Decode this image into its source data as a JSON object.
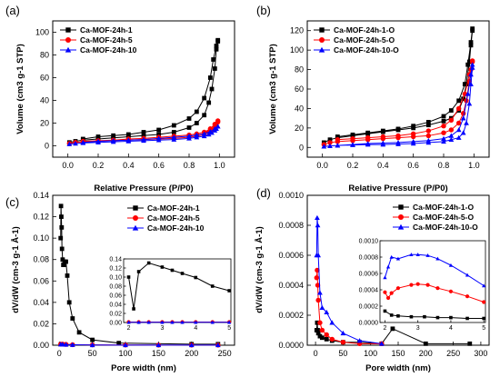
{
  "chart_data": [
    {
      "id": "a",
      "type": "line",
      "panel_label": "(a)",
      "xlabel": "Relative Pressure (P/P0)",
      "ylabel": "Volume (cm3 g-1 STP)",
      "xlim": [
        -0.1,
        1.1
      ],
      "ylim": [
        -10,
        110
      ],
      "xticks": [
        0.0,
        0.2,
        0.4,
        0.6,
        0.8,
        1.0
      ],
      "xtick_labels": [
        "0.0",
        "0.2",
        "0.4",
        "0.6",
        "0.8",
        "1.0"
      ],
      "yticks": [
        0,
        20,
        40,
        60,
        80,
        100
      ],
      "ytick_labels": [
        "0",
        "20",
        "40",
        "60",
        "80",
        "100"
      ],
      "legend_position": "top-left",
      "series": [
        {
          "name": "Ca-MOF-24h-1",
          "color": "#000000",
          "marker": "square",
          "x": [
            0.01,
            0.05,
            0.1,
            0.2,
            0.3,
            0.4,
            0.5,
            0.6,
            0.7,
            0.8,
            0.85,
            0.9,
            0.93,
            0.95,
            0.97,
            0.98,
            0.99,
            0.99,
            0.98,
            0.96,
            0.94,
            0.9,
            0.85,
            0.8,
            0.7,
            0.6,
            0.5,
            0.4,
            0.3,
            0.2,
            0.1
          ],
          "y": [
            3,
            4,
            5,
            6,
            7,
            8,
            9,
            10,
            12,
            16,
            20,
            27,
            38,
            50,
            68,
            85,
            92,
            93,
            88,
            76,
            60,
            42,
            30,
            24,
            18,
            14,
            12,
            10,
            9,
            8,
            6
          ]
        },
        {
          "name": "Ca-MOF-24h-5",
          "color": "#ff0000",
          "marker": "circle",
          "x": [
            0.01,
            0.05,
            0.1,
            0.2,
            0.3,
            0.4,
            0.5,
            0.6,
            0.7,
            0.8,
            0.85,
            0.9,
            0.93,
            0.95,
            0.97,
            0.98,
            0.99,
            0.99,
            0.97,
            0.94,
            0.9,
            0.85,
            0.8,
            0.7,
            0.6,
            0.5,
            0.4,
            0.3,
            0.2,
            0.1
          ],
          "y": [
            2,
            3,
            3.5,
            4,
            4.5,
            5,
            5.5,
            6,
            6.5,
            7.5,
            8.5,
            10,
            12,
            14,
            17,
            19,
            21,
            22,
            19,
            15,
            12,
            10.5,
            9.5,
            8.5,
            7.5,
            6.5,
            6,
            5,
            4.5,
            4
          ]
        },
        {
          "name": "Ca-MOF-24h-10",
          "color": "#0000ff",
          "marker": "triangle",
          "x": [
            0.01,
            0.05,
            0.1,
            0.2,
            0.3,
            0.4,
            0.5,
            0.6,
            0.7,
            0.8,
            0.85,
            0.9,
            0.93,
            0.95,
            0.97,
            0.98,
            0.99,
            0.99,
            0.97,
            0.94,
            0.9,
            0.85,
            0.8,
            0.7,
            0.6,
            0.5,
            0.4,
            0.3,
            0.2,
            0.1
          ],
          "y": [
            1.5,
            2,
            2.5,
            3,
            3.5,
            4,
            4.5,
            5,
            5.5,
            6.5,
            7.5,
            8.5,
            10,
            11.5,
            13.5,
            15,
            17,
            17,
            15,
            12.5,
            10.5,
            9.5,
            8.5,
            7.5,
            6.5,
            5.5,
            5,
            4.5,
            4,
            3
          ]
        }
      ]
    },
    {
      "id": "b",
      "type": "line",
      "panel_label": "(b)",
      "xlabel": "Relative Pressure (P/P0)",
      "ylabel": "Volume (cm3 g-1 STP)",
      "xlim": [
        -0.1,
        1.1
      ],
      "ylim": [
        -10,
        130
      ],
      "xticks": [
        0.0,
        0.2,
        0.4,
        0.6,
        0.8,
        1.0
      ],
      "xtick_labels": [
        "0.0",
        "0.2",
        "0.4",
        "0.6",
        "0.8",
        "1.0"
      ],
      "yticks": [
        0,
        20,
        40,
        60,
        80,
        100,
        120
      ],
      "ytick_labels": [
        "0",
        "20",
        "40",
        "60",
        "80",
        "100",
        "120"
      ],
      "legend_position": "top-left",
      "series": [
        {
          "name": "Ca-MOF-24h-1-O",
          "color": "#000000",
          "marker": "square",
          "x": [
            0.01,
            0.05,
            0.1,
            0.2,
            0.3,
            0.4,
            0.5,
            0.6,
            0.7,
            0.8,
            0.85,
            0.9,
            0.93,
            0.95,
            0.97,
            0.98,
            0.99,
            0.99,
            0.98,
            0.96,
            0.94,
            0.9,
            0.85,
            0.8,
            0.7,
            0.6,
            0.5,
            0.4,
            0.3,
            0.2,
            0.1
          ],
          "y": [
            5,
            8,
            10,
            12,
            14,
            16,
            18,
            20,
            23,
            27,
            30,
            38,
            50,
            65,
            88,
            105,
            120,
            122,
            108,
            85,
            65,
            48,
            38,
            32,
            26,
            22,
            19,
            17,
            15,
            13,
            11
          ]
        },
        {
          "name": "Ca-MOF-24h-5-O",
          "color": "#ff0000",
          "marker": "circle",
          "x": [
            0.01,
            0.05,
            0.1,
            0.2,
            0.3,
            0.4,
            0.5,
            0.6,
            0.7,
            0.8,
            0.85,
            0.9,
            0.93,
            0.95,
            0.97,
            0.98,
            0.99,
            0.99,
            0.97,
            0.94,
            0.9,
            0.85,
            0.8,
            0.7,
            0.6,
            0.5,
            0.4,
            0.3,
            0.2,
            0.1
          ],
          "y": [
            3,
            5,
            6,
            7,
            8,
            9,
            10,
            11,
            12,
            15,
            18,
            25,
            35,
            48,
            68,
            80,
            88,
            89,
            75,
            55,
            40,
            28,
            22,
            17,
            14,
            12,
            11,
            10,
            9,
            8
          ]
        },
        {
          "name": "Ca-MOF-24h-10-O",
          "color": "#0000ff",
          "marker": "triangle",
          "x": [
            0.01,
            0.05,
            0.1,
            0.2,
            0.3,
            0.4,
            0.5,
            0.6,
            0.7,
            0.8,
            0.85,
            0.9,
            0.93,
            0.95,
            0.97,
            0.98,
            0.99,
            0.99,
            0.98,
            0.96,
            0.93,
            0.9,
            0.85,
            0.8,
            0.7,
            0.6,
            0.5,
            0.4,
            0.3,
            0.2,
            0.1
          ],
          "y": [
            1,
            1.5,
            2,
            2.5,
            3,
            3,
            3.5,
            4,
            5,
            6,
            8,
            10,
            15,
            25,
            45,
            65,
            82,
            85,
            75,
            55,
            30,
            18,
            12,
            9,
            7,
            6,
            5,
            4.5,
            4,
            3,
            2
          ]
        }
      ]
    },
    {
      "id": "c",
      "type": "line",
      "panel_label": "(c)",
      "xlabel": "Pore width (nm)",
      "ylabel": "dV/dW (cm-3 g-1 Å-1)",
      "xlim": [
        -10,
        265
      ],
      "ylim": [
        0,
        0.14
      ],
      "xticks": [
        0,
        50,
        100,
        150,
        200,
        250
      ],
      "xtick_labels": [
        "0",
        "50",
        "100",
        "150",
        "200",
        "250"
      ],
      "yticks": [
        0.0,
        0.02,
        0.04,
        0.06,
        0.08,
        0.1,
        0.12,
        0.14
      ],
      "ytick_labels": [
        "0.00",
        "0.02",
        "0.04",
        "0.06",
        "0.08",
        "0.10",
        "0.12",
        "0.14"
      ],
      "legend_position": "top-right",
      "series": [
        {
          "name": "Ca-MOF-24h-1",
          "color": "#000000",
          "marker": "square",
          "x": [
            2,
            2.5,
            3,
            3.5,
            4,
            5,
            6,
            7,
            8,
            9,
            10,
            12,
            15,
            20,
            30,
            50,
            90,
            200,
            240
          ],
          "y": [
            0.1,
            0.13,
            0.12,
            0.11,
            0.09,
            0.08,
            0.075,
            0.075,
            0.078,
            0.078,
            0.078,
            0.065,
            0.04,
            0.025,
            0.012,
            0.005,
            0.002,
            0.001,
            0.001
          ]
        },
        {
          "name": "Ca-MOF-24h-5",
          "color": "#ff0000",
          "marker": "circle",
          "x": [
            2,
            5,
            10,
            20,
            50,
            100,
            150,
            200,
            240
          ],
          "y": [
            0.001,
            0.001,
            0.0008,
            0.0005,
            0.0003,
            0.0002,
            0.0001,
            0.0001,
            0.0001
          ]
        },
        {
          "name": "Ca-MOF-24h-10",
          "color": "#0000ff",
          "marker": "triangle",
          "x": [
            2,
            5,
            10,
            20,
            50,
            100,
            150,
            200,
            240
          ],
          "y": [
            0.0008,
            0.0008,
            0.0006,
            0.0004,
            0.0002,
            0.0001,
            0.0001,
            0.0001,
            0.0001
          ]
        }
      ],
      "inset": {
        "xlim": [
          1.85,
          5.05
        ],
        "ylim": [
          0,
          0.14
        ],
        "xticks": [
          2,
          3,
          4,
          5
        ],
        "xtick_labels": [
          "2",
          "3",
          "4",
          "5"
        ],
        "yticks": [
          0.0,
          0.02,
          0.04,
          0.06,
          0.08,
          0.1,
          0.12,
          0.14
        ],
        "ytick_labels": [
          "0.00",
          "0.02",
          "0.04",
          "0.06",
          "0.08",
          "0.10",
          "0.12",
          "0.14"
        ],
        "series": [
          {
            "name": "Ca-MOF-24h-1",
            "color": "#000000",
            "marker": "square",
            "x": [
              2.0,
              2.15,
              2.3,
              2.6,
              3.0,
              3.3,
              3.6,
              4.0,
              4.5,
              5.0
            ],
            "y": [
              0.1,
              0.03,
              0.112,
              0.131,
              0.122,
              0.115,
              0.108,
              0.099,
              0.08,
              0.07
            ]
          },
          {
            "name": "Ca-MOF-24h-5",
            "color": "#ff0000",
            "marker": "circle",
            "x": [
              2.0,
              2.3,
              2.6,
              3.0,
              3.3,
              3.6,
              4.0,
              4.5,
              5.0
            ],
            "y": [
              0.001,
              0.001,
              0.001,
              0.001,
              0.001,
              0.001,
              0.001,
              0.001,
              0.001
            ]
          },
          {
            "name": "Ca-MOF-24h-10",
            "color": "#0000ff",
            "marker": "triangle",
            "x": [
              2.0,
              2.3,
              2.6,
              3.0,
              3.3,
              3.6,
              4.0,
              4.5,
              5.0
            ],
            "y": [
              0.0005,
              0.0005,
              0.0005,
              0.0005,
              0.0005,
              0.0005,
              0.0005,
              0.0005,
              0.0005
            ]
          }
        ]
      }
    },
    {
      "id": "d",
      "type": "line",
      "panel_label": "(d)",
      "xlabel": "Pore width (nm)",
      "ylabel": "dV/dW (cm-3 g-1 Å-1)",
      "xlim": [
        -15,
        315
      ],
      "ylim": [
        0,
        0.001
      ],
      "xticks": [
        0,
        50,
        100,
        150,
        200,
        250,
        300
      ],
      "xtick_labels": [
        "0",
        "50",
        "100",
        "150",
        "200",
        "250",
        "300"
      ],
      "yticks": [
        0.0,
        0.0002,
        0.0004,
        0.0006,
        0.0008,
        0.001
      ],
      "ytick_labels": [
        "0.0000",
        "0.0002",
        "0.0004",
        "0.0006",
        "0.0008",
        "0.0010"
      ],
      "legend_position": "top-right",
      "series": [
        {
          "name": "Ca-MOF-24h-1-O",
          "color": "#000000",
          "marker": "square",
          "x": [
            2,
            3,
            4,
            5,
            8,
            12,
            20,
            30,
            50,
            80,
            120,
            140,
            200,
            280
          ],
          "y": [
            0.0001,
            0.00015,
            0.0001,
            8e-05,
            6e-05,
            5e-05,
            4e-05,
            3e-05,
            2e-05,
            2e-05,
            1e-05,
            0.00011,
            1e-05,
            1e-05
          ]
        },
        {
          "name": "Ca-MOF-24h-5-O",
          "color": "#ff0000",
          "marker": "circle",
          "x": [
            2,
            3,
            4,
            5,
            8,
            12,
            20,
            30,
            50,
            80,
            120
          ],
          "y": [
            0.00045,
            0.0005,
            0.0004,
            0.0003,
            0.00015,
            0.0001,
            7e-05,
            4e-05,
            2e-05,
            1e-05,
            1e-05
          ]
        },
        {
          "name": "Ca-MOF-24h-10-O",
          "color": "#0000ff",
          "marker": "triangle",
          "x": [
            2,
            3,
            4,
            5,
            8,
            12,
            20,
            30,
            50,
            80,
            120
          ],
          "y": [
            0.0006,
            0.00085,
            0.0008,
            0.0006,
            0.00035,
            0.00025,
            0.00022,
            0.00015,
            8e-05,
            3e-05,
            1e-05
          ]
        }
      ],
      "inset": {
        "xlim": [
          1.85,
          5.05
        ],
        "ylim": [
          0,
          0.001
        ],
        "xticks": [
          2,
          3,
          4,
          5
        ],
        "xtick_labels": [
          "2",
          "3",
          "4",
          "5"
        ],
        "yticks": [
          0.0,
          0.0002,
          0.0004,
          0.0006,
          0.0008,
          0.001
        ],
        "ytick_labels": [
          "0.0000",
          "0.0002",
          "0.0004",
          "0.0006",
          "0.0008",
          "0.0010"
        ],
        "series": [
          {
            "name": "Ca-MOF-24h-1-O",
            "color": "#000000",
            "marker": "square",
            "x": [
              2.0,
              2.2,
              2.4,
              2.8,
              3.2,
              3.6,
              4.0,
              4.5,
              5.0
            ],
            "y": [
              0.00014,
              9e-05,
              8e-05,
              7e-05,
              7e-05,
              6e-05,
              6e-05,
              5e-05,
              5e-05
            ]
          },
          {
            "name": "Ca-MOF-24h-5-O",
            "color": "#ff0000",
            "marker": "circle",
            "x": [
              2.0,
              2.1,
              2.2,
              2.4,
              2.8,
              3.0,
              3.3,
              3.6,
              4.0,
              4.5,
              5.0
            ],
            "y": [
              0.00037,
              0.0003,
              0.00036,
              0.00042,
              0.00046,
              0.00047,
              0.00046,
              0.00042,
              0.00038,
              0.00032,
              0.00025
            ]
          },
          {
            "name": "Ca-MOF-24h-10-O",
            "color": "#0000ff",
            "marker": "triangle",
            "x": [
              2.0,
              2.1,
              2.2,
              2.4,
              2.8,
              3.0,
              3.3,
              3.6,
              4.0,
              4.5,
              5.0
            ],
            "y": [
              0.00055,
              0.00068,
              0.0008,
              0.00078,
              0.00083,
              0.00083,
              0.00082,
              0.00078,
              0.0007,
              0.00058,
              0.00045
            ]
          }
        ]
      }
    }
  ]
}
